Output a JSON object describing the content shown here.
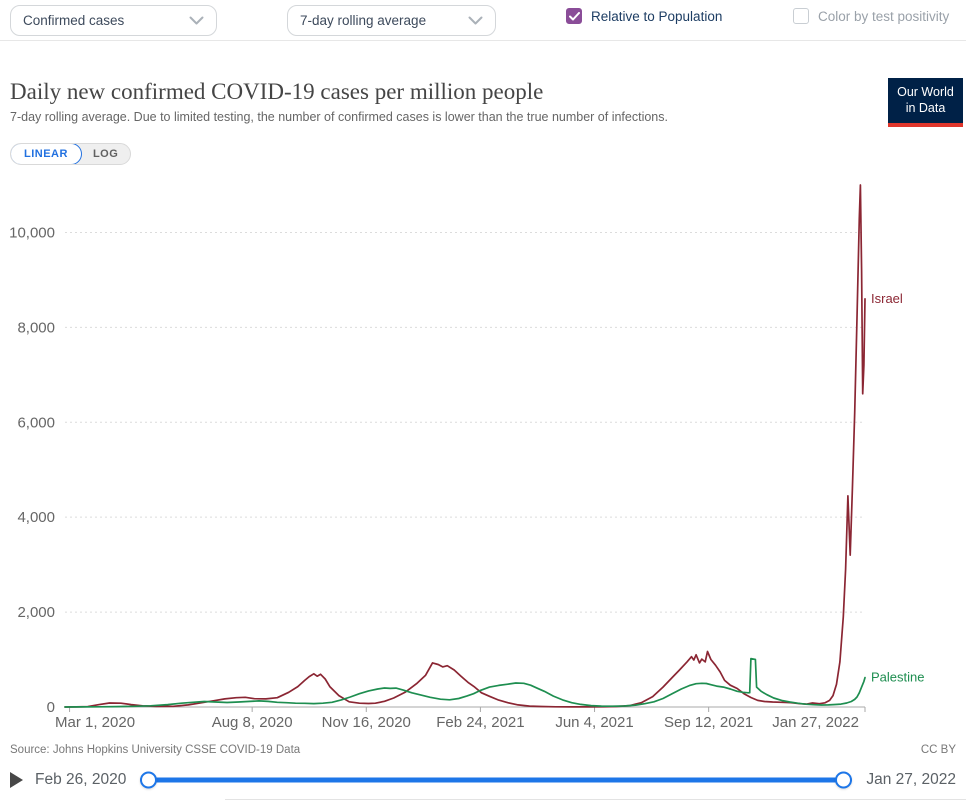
{
  "topbar": {
    "metric_dropdown": {
      "value": "Confirmed cases"
    },
    "interval_dropdown": {
      "value": "7-day rolling average"
    },
    "relative_checkbox": {
      "label": "Relative to Population",
      "checked": true,
      "color": "#8a4d98"
    },
    "positivity_checkbox": {
      "label": "Color by test positivity",
      "checked": false
    }
  },
  "header": {
    "title": "Daily new confirmed COVID-19 cases per million people",
    "subtitle": "7-day rolling average. Due to limited testing, the number of confirmed cases is lower than the true number of infections.",
    "logo": {
      "line1": "Our World",
      "line2": "in Data",
      "bg": "#002147",
      "accent": "#e0362c"
    }
  },
  "scale_toggle": {
    "linear": "LINEAR",
    "log": "LOG",
    "active": "LINEAR",
    "active_color": "#2271e0"
  },
  "chart_data": {
    "type": "line",
    "title": "Daily new confirmed COVID-19 cases per million people",
    "xlabel": "",
    "ylabel": "",
    "grid": "dashed-horizontal",
    "legend_position": "end-of-line-labels",
    "x_domain_days": [
      0,
      701
    ],
    "x_domain_dates": [
      "Feb 26, 2020",
      "Jan 27, 2022"
    ],
    "ylim": [
      0,
      11000
    ],
    "y_ticks": [
      {
        "value": 0,
        "label": "0"
      },
      {
        "value": 2000,
        "label": "2,000"
      },
      {
        "value": 4000,
        "label": "4,000"
      },
      {
        "value": 6000,
        "label": "6,000"
      },
      {
        "value": 8000,
        "label": "8,000"
      },
      {
        "value": 10000,
        "label": "10,000"
      }
    ],
    "x_ticks": [
      {
        "day": 4,
        "label": "Mar 1, 2020"
      },
      {
        "day": 164,
        "label": "Aug 8, 2020"
      },
      {
        "day": 264,
        "label": "Nov 16, 2020"
      },
      {
        "day": 364,
        "label": "Feb 24, 2021"
      },
      {
        "day": 464,
        "label": "Jun 4, 2021"
      },
      {
        "day": 564,
        "label": "Sep 12, 2021"
      },
      {
        "day": 701,
        "label": "Jan 27, 2022"
      }
    ],
    "series": [
      {
        "name": "Israel",
        "color": "#8b2633",
        "points": [
          [
            0,
            0
          ],
          [
            10,
            2
          ],
          [
            20,
            8
          ],
          [
            30,
            50
          ],
          [
            39,
            85
          ],
          [
            49,
            80
          ],
          [
            58,
            50
          ],
          [
            68,
            25
          ],
          [
            80,
            12
          ],
          [
            95,
            14
          ],
          [
            108,
            45
          ],
          [
            120,
            90
          ],
          [
            130,
            130
          ],
          [
            140,
            170
          ],
          [
            150,
            195
          ],
          [
            158,
            205
          ],
          [
            166,
            175
          ],
          [
            176,
            170
          ],
          [
            186,
            195
          ],
          [
            196,
            310
          ],
          [
            204,
            430
          ],
          [
            210,
            560
          ],
          [
            214,
            640
          ],
          [
            218,
            700
          ],
          [
            221,
            650
          ],
          [
            224,
            690
          ],
          [
            228,
            590
          ],
          [
            232,
            430
          ],
          [
            240,
            240
          ],
          [
            249,
            110
          ],
          [
            258,
            80
          ],
          [
            266,
            74
          ],
          [
            272,
            80
          ],
          [
            280,
            120
          ],
          [
            288,
            190
          ],
          [
            298,
            310
          ],
          [
            308,
            490
          ],
          [
            316,
            670
          ],
          [
            322,
            930
          ],
          [
            327,
            895
          ],
          [
            331,
            845
          ],
          [
            335,
            870
          ],
          [
            341,
            780
          ],
          [
            347,
            650
          ],
          [
            353,
            520
          ],
          [
            359,
            420
          ],
          [
            365,
            300
          ],
          [
            372,
            225
          ],
          [
            380,
            145
          ],
          [
            388,
            90
          ],
          [
            397,
            45
          ],
          [
            407,
            20
          ],
          [
            417,
            10
          ],
          [
            430,
            5
          ],
          [
            445,
            3
          ],
          [
            460,
            2
          ],
          [
            472,
            4
          ],
          [
            483,
            10
          ],
          [
            495,
            30
          ],
          [
            505,
            90
          ],
          [
            515,
            220
          ],
          [
            524,
            420
          ],
          [
            532,
            620
          ],
          [
            538,
            770
          ],
          [
            545,
            950
          ],
          [
            549,
            1060
          ],
          [
            551,
            990
          ],
          [
            553,
            1100
          ],
          [
            556,
            930
          ],
          [
            558,
            1010
          ],
          [
            561,
            950
          ],
          [
            563,
            1170
          ],
          [
            566,
            1000
          ],
          [
            570,
            880
          ],
          [
            574,
            740
          ],
          [
            578,
            560
          ],
          [
            583,
            460
          ],
          [
            589,
            390
          ],
          [
            595,
            280
          ],
          [
            601,
            200
          ],
          [
            607,
            140
          ],
          [
            613,
            115
          ],
          [
            620,
            105
          ],
          [
            628,
            100
          ],
          [
            636,
            90
          ],
          [
            644,
            70
          ],
          [
            650,
            62
          ],
          [
            655,
            85
          ],
          [
            661,
            70
          ],
          [
            666,
            88
          ],
          [
            670,
            140
          ],
          [
            673,
            240
          ],
          [
            676,
            480
          ],
          [
            679,
            950
          ],
          [
            682,
            1900
          ],
          [
            684,
            2900
          ],
          [
            686,
            4450
          ],
          [
            688,
            3200
          ],
          [
            690,
            4600
          ],
          [
            692,
            6200
          ],
          [
            694,
            8200
          ],
          [
            696,
            10300
          ],
          [
            697,
            11000
          ],
          [
            698,
            9200
          ],
          [
            699,
            6600
          ],
          [
            700,
            7200
          ],
          [
            701,
            8600
          ]
        ]
      },
      {
        "name": "Palestine",
        "color": "#1e8e50",
        "points": [
          [
            0,
            0
          ],
          [
            15,
            2
          ],
          [
            30,
            4
          ],
          [
            45,
            8
          ],
          [
            60,
            14
          ],
          [
            75,
            25
          ],
          [
            90,
            50
          ],
          [
            102,
            80
          ],
          [
            112,
            100
          ],
          [
            122,
            115
          ],
          [
            132,
            105
          ],
          [
            142,
            95
          ],
          [
            152,
            105
          ],
          [
            162,
            118
          ],
          [
            170,
            128
          ],
          [
            178,
            118
          ],
          [
            186,
            100
          ],
          [
            194,
            90
          ],
          [
            202,
            80
          ],
          [
            210,
            78
          ],
          [
            218,
            72
          ],
          [
            226,
            80
          ],
          [
            234,
            100
          ],
          [
            242,
            150
          ],
          [
            250,
            210
          ],
          [
            258,
            280
          ],
          [
            266,
            340
          ],
          [
            274,
            380
          ],
          [
            280,
            400
          ],
          [
            285,
            392
          ],
          [
            290,
            398
          ],
          [
            296,
            360
          ],
          [
            304,
            300
          ],
          [
            312,
            250
          ],
          [
            320,
            205
          ],
          [
            329,
            165
          ],
          [
            337,
            152
          ],
          [
            345,
            180
          ],
          [
            352,
            230
          ],
          [
            358,
            280
          ],
          [
            364,
            350
          ],
          [
            372,
            420
          ],
          [
            380,
            455
          ],
          [
            388,
            480
          ],
          [
            395,
            505
          ],
          [
            402,
            500
          ],
          [
            408,
            460
          ],
          [
            414,
            395
          ],
          [
            420,
            330
          ],
          [
            428,
            230
          ],
          [
            436,
            150
          ],
          [
            444,
            90
          ],
          [
            452,
            55
          ],
          [
            461,
            30
          ],
          [
            470,
            20
          ],
          [
            480,
            16
          ],
          [
            490,
            22
          ],
          [
            500,
            40
          ],
          [
            508,
            70
          ],
          [
            516,
            110
          ],
          [
            524,
            180
          ],
          [
            532,
            280
          ],
          [
            540,
            380
          ],
          [
            547,
            450
          ],
          [
            553,
            490
          ],
          [
            558,
            500
          ],
          [
            562,
            495
          ],
          [
            566,
            470
          ],
          [
            571,
            440
          ],
          [
            577,
            420
          ],
          [
            583,
            380
          ],
          [
            589,
            330
          ],
          [
            594,
            310
          ],
          [
            599,
            300
          ],
          [
            600,
            302
          ],
          [
            601,
            1020
          ],
          [
            605,
            1000
          ],
          [
            606,
            420
          ],
          [
            610,
            330
          ],
          [
            615,
            260
          ],
          [
            621,
            190
          ],
          [
            628,
            140
          ],
          [
            635,
            105
          ],
          [
            642,
            80
          ],
          [
            649,
            60
          ],
          [
            656,
            48
          ],
          [
            663,
            42
          ],
          [
            669,
            45
          ],
          [
            675,
            52
          ],
          [
            680,
            62
          ],
          [
            685,
            85
          ],
          [
            689,
            115
          ],
          [
            692,
            160
          ],
          [
            694,
            210
          ],
          [
            696,
            300
          ],
          [
            698,
            420
          ],
          [
            700,
            540
          ],
          [
            701,
            620
          ]
        ]
      }
    ]
  },
  "footer": {
    "source": "Source: Johns Hopkins University CSSE COVID-19 Data",
    "license": "CC BY"
  },
  "timeline": {
    "start": "Feb 26, 2020",
    "end": "Jan 27, 2022",
    "accent": "#1d76e8"
  }
}
